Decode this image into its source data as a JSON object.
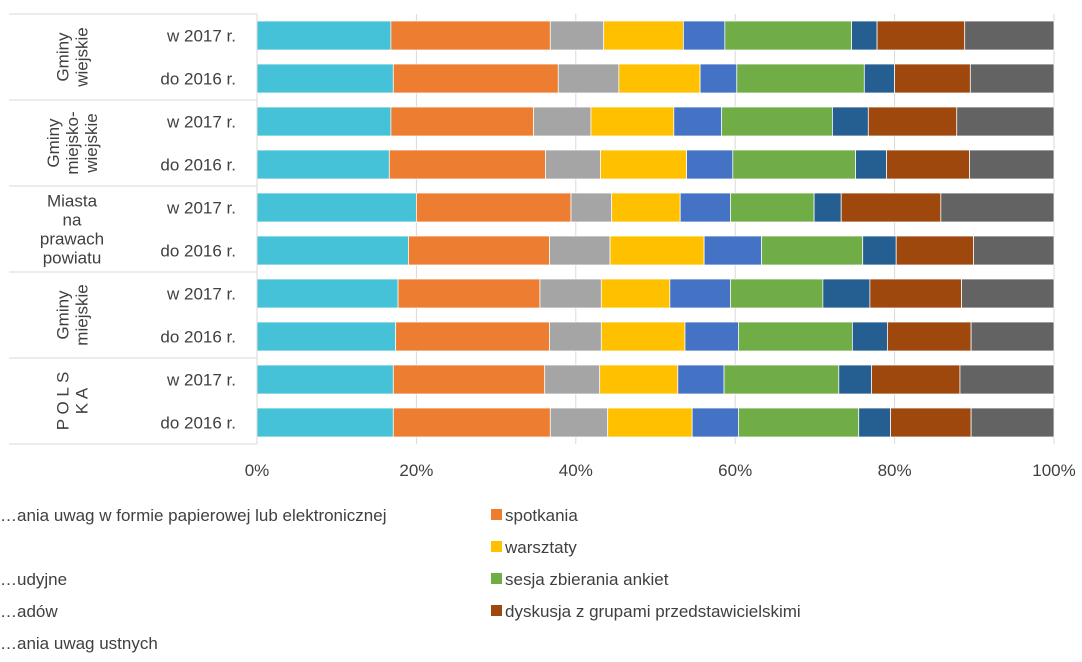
{
  "chart_data": {
    "type": "bar",
    "stacked": true,
    "orientation": "horizontal",
    "percent_axis": true,
    "xlim": [
      0,
      100
    ],
    "x_ticks": [
      "0%",
      "20%",
      "40%",
      "60%",
      "80%",
      "100%"
    ],
    "groups": [
      {
        "label_lines": [
          "Gminy",
          "wiejskie"
        ],
        "rotated": true
      },
      {
        "label_lines": [
          "Gminy",
          "miejsko-",
          "wiejskie"
        ],
        "rotated": true
      },
      {
        "label_lines": [
          "Miasta",
          "na",
          "prawach",
          "powiatu"
        ],
        "rotated": false
      },
      {
        "label_lines": [
          "Gminy",
          "miejskie"
        ],
        "rotated": true
      },
      {
        "label_lines": [
          "P O L S",
          "K A"
        ],
        "rotated": true
      }
    ],
    "categories": [
      "w 2017 r.",
      "do 2016 r.",
      "w 2017 r.",
      "do 2016 r.",
      "w 2017 r.",
      "do 2016 r.",
      "w 2017 r.",
      "do 2016 r.",
      "w 2017 r.",
      "do 2016 r."
    ],
    "series": [
      {
        "name": "…ania uwag w formie papierowej lub elektronicznej",
        "color": "#46c2d8",
        "values": [
          16.8,
          17.1,
          16.8,
          16.6,
          20.0,
          19.0,
          17.7,
          17.4,
          17.1,
          17.1
        ]
      },
      {
        "name": "spotkania",
        "color": "#ed7d31",
        "values": [
          20.0,
          20.7,
          17.9,
          19.6,
          19.4,
          17.7,
          17.8,
          19.3,
          19.0,
          19.7
        ]
      },
      {
        "name": "",
        "color": "#a5a5a5",
        "values": [
          6.7,
          7.6,
          7.2,
          6.9,
          5.1,
          7.6,
          7.7,
          6.5,
          6.9,
          7.2
        ]
      },
      {
        "name": "warsztaty",
        "color": "#ffc000",
        "values": [
          10.0,
          10.2,
          10.4,
          10.8,
          8.6,
          11.8,
          8.6,
          10.5,
          9.8,
          10.6
        ]
      },
      {
        "name": "",
        "color": "#4472c4",
        "values": [
          5.2,
          4.6,
          6.0,
          5.8,
          6.3,
          7.2,
          7.6,
          6.7,
          5.8,
          5.8
        ]
      },
      {
        "name": "sesja zbierania ankiet",
        "color": "#70ad47",
        "values": [
          15.9,
          16.0,
          13.9,
          15.4,
          10.5,
          12.7,
          11.6,
          14.3,
          14.4,
          15.1
        ]
      },
      {
        "name": "",
        "color": "#255e91",
        "values": [
          3.2,
          3.8,
          4.5,
          3.9,
          3.4,
          4.2,
          5.9,
          4.4,
          4.1,
          4.0
        ]
      },
      {
        "name": "dyskusja z grupami przedstawicielskimi",
        "color": "#9e480e",
        "values": [
          11.0,
          9.5,
          11.1,
          10.4,
          12.5,
          9.7,
          11.5,
          10.5,
          11.1,
          10.1
        ]
      },
      {
        "name": "",
        "color": "#636363",
        "values": [
          11.2,
          10.5,
          12.2,
          10.6,
          14.2,
          10.1,
          11.6,
          10.4,
          11.8,
          10.4
        ]
      }
    ],
    "legend": {
      "placement": "bottom",
      "left_column": [
        {
          "label": "…ania uwag w formie papierowej lub elektronicznej"
        },
        {
          "label": ""
        },
        {
          "label": "…udyjne"
        },
        {
          "label": "…adów"
        },
        {
          "label": "…ania uwag ustnych"
        }
      ],
      "right_column": [
        {
          "label": "spotkania",
          "color": "#ed7d31"
        },
        {
          "label": "warsztaty",
          "color": "#ffc000"
        },
        {
          "label": "sesja zbierania ankiet",
          "color": "#70ad47"
        },
        {
          "label": "dyskusja z grupami przedstawicielskimi",
          "color": "#9e480e"
        }
      ]
    }
  }
}
